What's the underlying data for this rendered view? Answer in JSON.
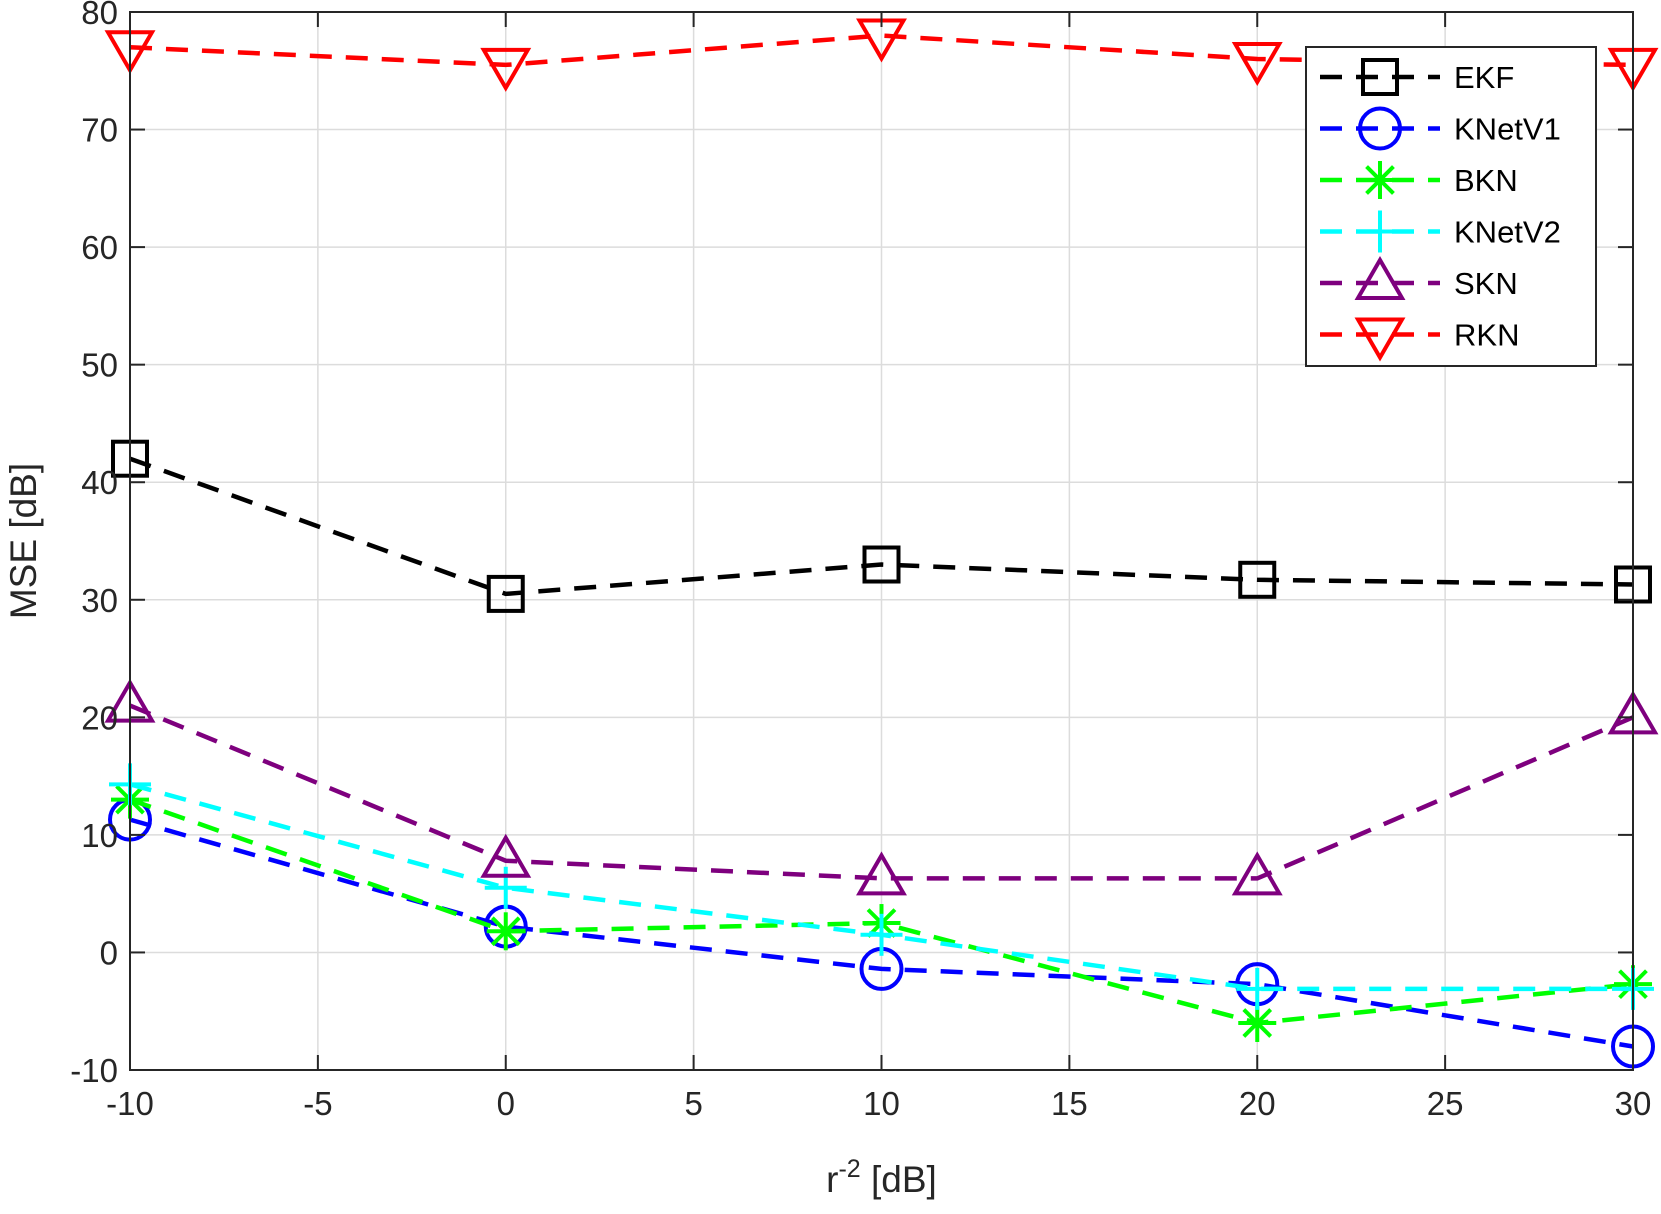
{
  "chart_data": {
    "type": "line",
    "title": "",
    "xlabel": "r",
    "xlabel_sup": "-2",
    "xlabel_suffix": " [dB]",
    "ylabel": "MSE [dB]",
    "xlim": [
      -10,
      30
    ],
    "ylim": [
      -10,
      80
    ],
    "xticks": [
      -10,
      -5,
      0,
      5,
      10,
      15,
      20,
      25,
      30
    ],
    "yticks": [
      -10,
      0,
      10,
      20,
      30,
      40,
      50,
      60,
      70,
      80
    ],
    "grid": true,
    "legend_position": "top-right",
    "x": [
      -10,
      0,
      10,
      20,
      30
    ],
    "series": [
      {
        "name": "EKF",
        "color": "#000000",
        "marker": "square",
        "values": [
          42.0,
          30.5,
          33.0,
          31.7,
          31.3
        ]
      },
      {
        "name": "KNetV1",
        "color": "#0000ff",
        "marker": "circle",
        "values": [
          11.3,
          2.2,
          -1.4,
          -2.7,
          -8.0
        ]
      },
      {
        "name": "BKN",
        "color": "#00ff00",
        "marker": "asterisk",
        "values": [
          13.0,
          1.8,
          2.5,
          -6.0,
          -2.7
        ]
      },
      {
        "name": "KNetV2",
        "color": "#00ffff",
        "marker": "plus",
        "values": [
          14.3,
          5.5,
          1.5,
          -3.1,
          -3.1
        ]
      },
      {
        "name": "SKN",
        "color": "#7e007e",
        "marker": "triangle-up",
        "values": [
          21.0,
          7.8,
          6.3,
          6.3,
          20.0
        ]
      },
      {
        "name": "RKN",
        "color": "#ff0000",
        "marker": "triangle-down",
        "values": [
          77.0,
          75.5,
          78.0,
          76.0,
          75.5
        ]
      }
    ]
  }
}
